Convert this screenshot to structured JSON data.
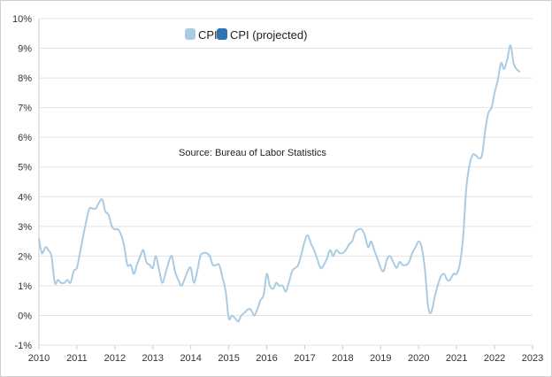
{
  "chart_data": {
    "type": "line",
    "title": "",
    "xlabel": "",
    "ylabel": "",
    "xlim": [
      2010,
      2023
    ],
    "ylim": [
      -1,
      10
    ],
    "grid": true,
    "legend_position": "top-center",
    "x_ticks": [
      "2010",
      "2011",
      "2012",
      "2013",
      "2014",
      "2015",
      "2016",
      "2017",
      "2018",
      "2019",
      "2020",
      "2021",
      "2022",
      "2023"
    ],
    "y_ticks": [
      "-1%",
      "0%",
      "1%",
      "2%",
      "3%",
      "4%",
      "5%",
      "6%",
      "7%",
      "8%",
      "9%",
      "10%"
    ],
    "annotation": "Source: Bureau of Labor Statistics",
    "series": [
      {
        "name": "CPI",
        "color": "#a9cce3",
        "x": [
          2010.0,
          2010.08,
          2010.17,
          2010.25,
          2010.33,
          2010.42,
          2010.5,
          2010.58,
          2010.67,
          2010.75,
          2010.83,
          2010.92,
          2011.0,
          2011.08,
          2011.17,
          2011.25,
          2011.33,
          2011.42,
          2011.5,
          2011.58,
          2011.67,
          2011.75,
          2011.83,
          2011.92,
          2012.0,
          2012.08,
          2012.17,
          2012.25,
          2012.33,
          2012.42,
          2012.5,
          2012.58,
          2012.67,
          2012.75,
          2012.83,
          2012.92,
          2013.0,
          2013.08,
          2013.17,
          2013.25,
          2013.33,
          2013.42,
          2013.5,
          2013.58,
          2013.67,
          2013.75,
          2013.83,
          2013.92,
          2014.0,
          2014.08,
          2014.17,
          2014.25,
          2014.33,
          2014.42,
          2014.5,
          2014.58,
          2014.67,
          2014.75,
          2014.83,
          2014.92,
          2015.0,
          2015.08,
          2015.17,
          2015.25,
          2015.33,
          2015.42,
          2015.5,
          2015.58,
          2015.67,
          2015.75,
          2015.83,
          2015.92,
          2016.0,
          2016.08,
          2016.17,
          2016.25,
          2016.33,
          2016.42,
          2016.5,
          2016.58,
          2016.67,
          2016.75,
          2016.83,
          2016.92,
          2017.0,
          2017.08,
          2017.17,
          2017.25,
          2017.33,
          2017.42,
          2017.5,
          2017.58,
          2017.67,
          2017.75,
          2017.83,
          2017.92,
          2018.0,
          2018.08,
          2018.17,
          2018.25,
          2018.33,
          2018.42,
          2018.5,
          2018.58,
          2018.67,
          2018.75,
          2018.83,
          2018.92,
          2019.0,
          2019.08,
          2019.17,
          2019.25,
          2019.33,
          2019.42,
          2019.5,
          2019.58,
          2019.67,
          2019.75,
          2019.83,
          2019.92,
          2020.0,
          2020.08,
          2020.17,
          2020.25,
          2020.33,
          2020.42,
          2020.5,
          2020.58,
          2020.67,
          2020.75,
          2020.83,
          2020.92,
          2021.0,
          2021.08,
          2021.17,
          2021.25,
          2021.33,
          2021.42,
          2021.5,
          2021.58,
          2021.67,
          2021.75,
          2021.83,
          2021.92,
          2022.0,
          2022.08,
          2022.17,
          2022.25,
          2022.33,
          2022.42,
          2022.5,
          2022.58,
          2022.67
        ],
        "values": [
          2.6,
          2.1,
          2.3,
          2.2,
          2.0,
          1.1,
          1.2,
          1.1,
          1.1,
          1.2,
          1.1,
          1.5,
          1.6,
          2.1,
          2.7,
          3.2,
          3.6,
          3.6,
          3.6,
          3.8,
          3.9,
          3.5,
          3.4,
          3.0,
          2.9,
          2.9,
          2.7,
          2.3,
          1.7,
          1.7,
          1.4,
          1.7,
          2.0,
          2.2,
          1.8,
          1.7,
          1.6,
          2.0,
          1.5,
          1.1,
          1.4,
          1.8,
          2.0,
          1.5,
          1.2,
          1.0,
          1.2,
          1.5,
          1.6,
          1.1,
          1.5,
          2.0,
          2.1,
          2.1,
          2.0,
          1.7,
          1.7,
          1.7,
          1.3,
          0.8,
          -0.1,
          0.0,
          -0.1,
          -0.2,
          0.0,
          0.1,
          0.2,
          0.2,
          0.0,
          0.2,
          0.5,
          0.7,
          1.4,
          1.0,
          0.9,
          1.1,
          1.0,
          1.0,
          0.8,
          1.1,
          1.5,
          1.6,
          1.7,
          2.1,
          2.5,
          2.7,
          2.4,
          2.2,
          1.9,
          1.6,
          1.7,
          1.9,
          2.2,
          2.0,
          2.2,
          2.1,
          2.1,
          2.2,
          2.4,
          2.5,
          2.8,
          2.9,
          2.9,
          2.7,
          2.3,
          2.5,
          2.2,
          1.9,
          1.6,
          1.5,
          1.9,
          2.0,
          1.8,
          1.6,
          1.8,
          1.7,
          1.7,
          1.8,
          2.1,
          2.3,
          2.5,
          2.3,
          1.5,
          0.3,
          0.1,
          0.6,
          1.0,
          1.3,
          1.4,
          1.2,
          1.2,
          1.4,
          1.4,
          1.7,
          2.6,
          4.2,
          5.0,
          5.4,
          5.4,
          5.3,
          5.4,
          6.2,
          6.8,
          7.0,
          7.5,
          7.9,
          8.5,
          8.3,
          8.6,
          9.1,
          8.5,
          8.3,
          8.2
        ]
      },
      {
        "name": "CPI (projected)",
        "color": "#2e75b6",
        "x": [],
        "values": []
      }
    ]
  }
}
